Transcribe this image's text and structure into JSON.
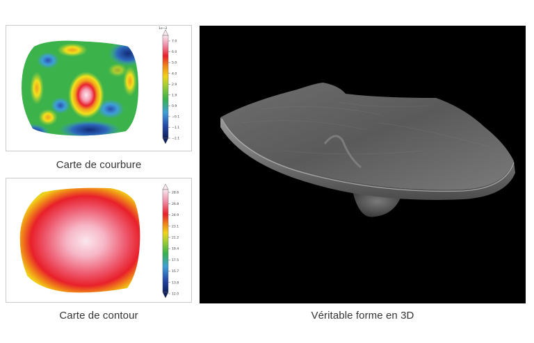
{
  "panels": {
    "curvature": {
      "caption": "Carte de courbure",
      "colorbar": {
        "exponent": "1e−2",
        "ticks": [
          "7.0",
          "6.0",
          "5.0",
          "4.0",
          "2.9",
          "1.9",
          "0.9",
          "−0.1",
          "−1.1",
          "−2.1"
        ]
      }
    },
    "contour": {
      "caption": "Carte de contour",
      "colorbar": {
        "ticks": [
          "28.6",
          "26.8",
          "24.9",
          "23.1",
          "21.2",
          "19.4",
          "17.5",
          "15.7",
          "13.8",
          "12.0"
        ]
      }
    },
    "shape3d": {
      "caption": "Véritable forme en 3D"
    }
  },
  "colors": {
    "scan_background": "#000000",
    "caption_text": "#333333",
    "panel_border": "#c9c9c9"
  }
}
